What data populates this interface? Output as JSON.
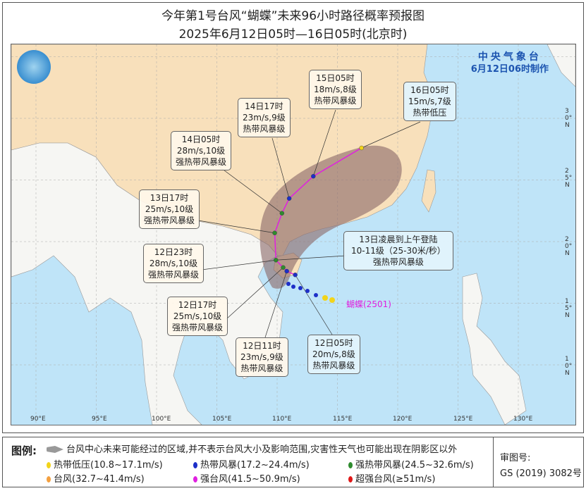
{
  "title": "今年第1号台风“蝴蝶”未来96小时路径概率预报图",
  "subtitle": "2025年6月12日05时—16日05时(北京时)",
  "agency": {
    "name": "中央气象台",
    "issued": "6月12日06时制作"
  },
  "typhoon_name": "蝴蝶(2501)",
  "longitude_labels": [
    "90°E",
    "95°E",
    "100°E",
    "105°E",
    "110°E",
    "115°E",
    "120°E",
    "125°E",
    "130°E"
  ],
  "latitude_labels": [
    "30°N",
    "25°N",
    "20°N",
    "15°N",
    "10°N"
  ],
  "forecast_points": [
    {
      "time": "12日05时",
      "wind": "20m/s,8级",
      "category": "热带风暴级",
      "lon": 111.5,
      "lat": 17.3
    },
    {
      "time": "12日11时",
      "wind": "23m/s,9级",
      "category": "热带风暴级",
      "lon": 110.8,
      "lat": 17.6
    },
    {
      "time": "12日17时",
      "wind": "25m/s,10级",
      "category": "强热带风暴级",
      "lon": 110.5,
      "lat": 17.9
    },
    {
      "time": "12日23时",
      "wind": "28m/s,10级",
      "category": "强热带风暴级",
      "lon": 109.9,
      "lat": 18.5
    },
    {
      "time": "13日17时",
      "wind": "25m/s,10级",
      "category": "强热带风暴级",
      "lon": 109.8,
      "lat": 20.7
    },
    {
      "time": "14日05时",
      "wind": "28m/s,10级",
      "category": "强热带风暴级",
      "lon": 110.4,
      "lat": 22.3
    },
    {
      "time": "14日17时",
      "wind": "23m/s,9级",
      "category": "热带风暴级",
      "lon": 111.0,
      "lat": 23.5
    },
    {
      "time": "15日05时",
      "wind": "18m/s,8级",
      "category": "热带风暴级",
      "lon": 113.0,
      "lat": 25.3
    },
    {
      "time": "16日05时",
      "wind": "15m/s,7级",
      "category": "热带低压",
      "lon": 117.0,
      "lat": 27.6
    }
  ],
  "landfall": {
    "line1": "13日凌晨到上午登陆",
    "line2": "10-11级（25-30米/秒）",
    "line3": "强热带风暴级"
  },
  "colors": {
    "td": "#f2d41a",
    "ts": "#1d2fc8",
    "sts": "#2e8b2e",
    "ty": "#f4a040",
    "sty": "#e020e0",
    "superty": "#e01818",
    "cone": "#8c6a6a",
    "track": "#e020e0",
    "ocean": "#bfe4f8",
    "china": "#f8e0bb"
  },
  "legend": {
    "label": "图例:",
    "cone_text": "台风中心未来可能经过的区域,并不表示台风大小及影响范围,灾害性天气也可能出现在阴影区以外",
    "items": [
      {
        "text": "热带低压(10.8~17.1m/s)",
        "color": "#f2d41a"
      },
      {
        "text": "热带风暴(17.2~24.4m/s)",
        "color": "#1d2fc8"
      },
      {
        "text": "强热带风暴(24.5~32.6m/s)",
        "color": "#2e8b2e"
      },
      {
        "text": "台风(32.7~41.4m/s)",
        "color": "#f4a040"
      },
      {
        "text": "强台风(41.5~50.9m/s)",
        "color": "#e020e0"
      },
      {
        "text": "超强台风(≥51m/s)",
        "color": "#e01818"
      }
    ],
    "approval_label": "审图号:",
    "approval_no": "GS (2019) 3082号"
  }
}
